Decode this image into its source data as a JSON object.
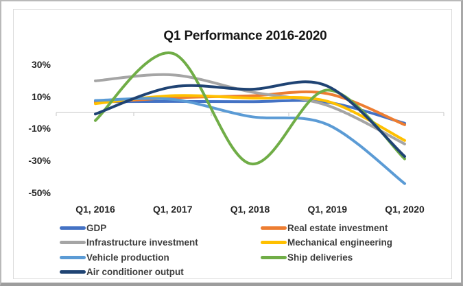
{
  "chart_data": {
    "type": "line",
    "title": "Q1 Performance 2016-2020",
    "categories": [
      "Q1, 2016",
      "Q1, 2017",
      "Q1, 2018",
      "Q1, 2019",
      "Q1, 2020"
    ],
    "series": [
      {
        "name": "GDP",
        "color": "#4472C4",
        "values": [
          6.8,
          6.9,
          6.8,
          6.4,
          -6.8
        ]
      },
      {
        "name": "Real estate investment",
        "color": "#ED7D31",
        "values": [
          6.2,
          9.1,
          10.4,
          11.8,
          -7.7
        ]
      },
      {
        "name": "Infrastructure investment",
        "color": "#A5A5A5",
        "values": [
          19.8,
          23.5,
          13.0,
          4.4,
          -19.7
        ]
      },
      {
        "name": "Mechanical engineering",
        "color": "#FFC000",
        "values": [
          5.5,
          10.5,
          9.0,
          7.0,
          -17.5
        ]
      },
      {
        "name": "Vehicle production",
        "color": "#5B9BD5",
        "values": [
          7.5,
          8.2,
          -2.5,
          -7.5,
          -44.5
        ]
      },
      {
        "name": "Ship deliveries",
        "color": "#70AD47",
        "values": [
          -5.0,
          37.0,
          -32.0,
          14.0,
          -29.0
        ]
      },
      {
        "name": "Air conditioner output",
        "color": "#1F4373",
        "values": [
          -1.0,
          16.0,
          14.5,
          16.5,
          -27.5
        ]
      }
    ],
    "y_ticks": [
      {
        "label": "30%",
        "value": 30
      },
      {
        "label": "10%",
        "value": 10
      },
      {
        "label": "-10%",
        "value": -10
      },
      {
        "label": "-30%",
        "value": -30
      },
      {
        "label": "-50%",
        "value": -50
      }
    ],
    "ylim": [
      -55,
      40
    ],
    "smooth": true,
    "grid": "zero-axis-only",
    "axis_color": "#d9d9d9",
    "legend_position": "bottom-two-columns"
  },
  "legend": {
    "left_column_series": [
      0,
      2,
      4,
      6
    ],
    "right_column_series": [
      1,
      3,
      5
    ]
  }
}
